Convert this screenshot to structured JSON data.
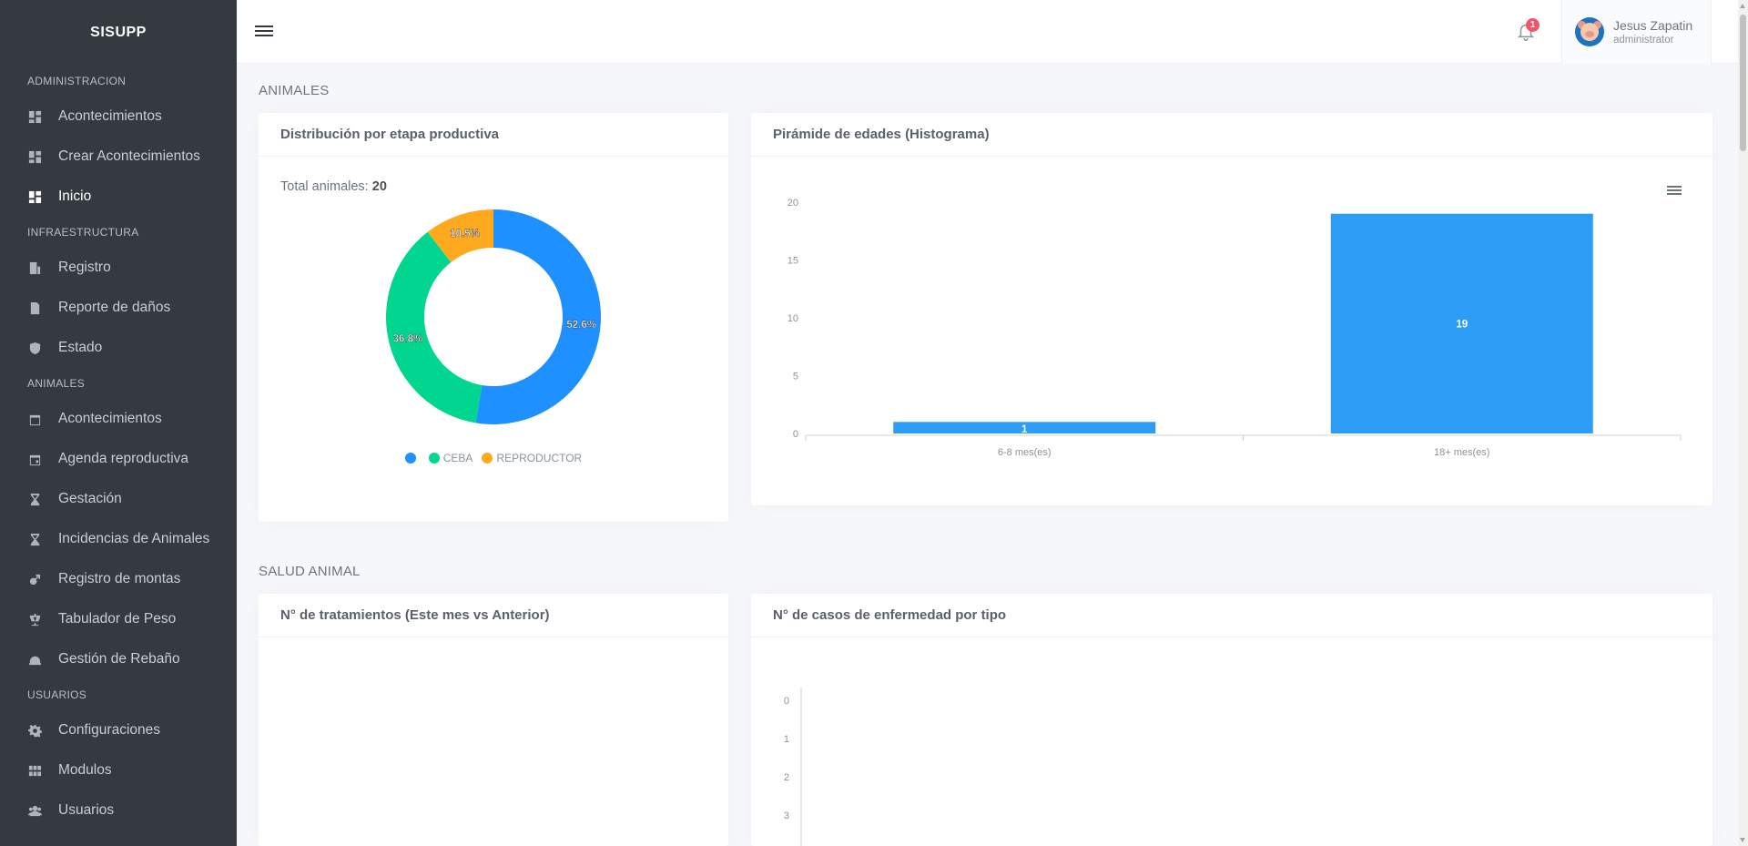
{
  "app": {
    "brand": "SISUPP"
  },
  "sidebar": {
    "sections": [
      {
        "title": "ADMINISTRACION",
        "items": [
          {
            "label": "Acontecimientos",
            "icon": "dashboard-icon"
          },
          {
            "label": "Crear Acontecimientos",
            "icon": "dashboard-icon"
          },
          {
            "label": "Inicio",
            "icon": "dashboard-icon",
            "active": true
          }
        ]
      },
      {
        "title": "INFRAESTRUCTURA",
        "items": [
          {
            "label": "Registro",
            "icon": "building-icon"
          },
          {
            "label": "Reporte de daños",
            "icon": "file-icon"
          },
          {
            "label": "Estado",
            "icon": "shield-check-icon"
          }
        ]
      },
      {
        "title": "ANIMALES",
        "items": [
          {
            "label": "Acontecimientos",
            "icon": "calendar-icon"
          },
          {
            "label": "Agenda reproductiva",
            "icon": "calendar-event-icon"
          },
          {
            "label": "Gestación",
            "icon": "hourglass-icon"
          },
          {
            "label": "Incidencias de Animales",
            "icon": "hourglass-icon"
          },
          {
            "label": "Registro de montas",
            "icon": "gender-icon"
          },
          {
            "label": "Tabulador de Peso",
            "icon": "scale-icon"
          },
          {
            "label": "Gestión de Rebaño",
            "icon": "helmet-icon"
          }
        ]
      },
      {
        "title": "USUARIOS",
        "items": [
          {
            "label": "Configuraciones",
            "icon": "gear-icon"
          },
          {
            "label": "Modulos",
            "icon": "grid-icon"
          },
          {
            "label": "Usuarios",
            "icon": "users-icon"
          }
        ]
      }
    ]
  },
  "topbar": {
    "notification_count": "1",
    "user": {
      "name": "Jesus Zapatin",
      "role": "administrator"
    }
  },
  "sections": {
    "animales": "ANIMALES",
    "salud": "SALUD ANIMAL"
  },
  "cards": {
    "distribucion": {
      "title": "Distribución por etapa productiva",
      "total_label": "Total animales:",
      "total_value": "20"
    },
    "piramide": {
      "title": "Pirámide de edades (Histograma)"
    },
    "tratamientos": {
      "title": "N° de tratamientos (Este mes vs Anterior)"
    },
    "enfermedad": {
      "title": "N° de casos de enfermedad por tipo"
    }
  },
  "chart_data": [
    {
      "type": "pie",
      "variant": "donut",
      "labels": [
        "",
        "CEBA",
        "REPRODUCTOR"
      ],
      "values": [
        52.6,
        36.8,
        10.5
      ],
      "data_labels": [
        "52.6%",
        "36.8%",
        "10.5%"
      ],
      "colors": [
        "#1e90ff",
        "#00d68f",
        "#ffa91e"
      ],
      "legend": "bottom"
    },
    {
      "type": "bar",
      "categories": [
        "6-8 mes(es)",
        "18+ mes(es)"
      ],
      "values": [
        1,
        19
      ],
      "ylim": [
        0,
        20
      ],
      "yticks": [
        0,
        5,
        10,
        15,
        20
      ],
      "color": "#2d9cf5",
      "grid": false
    },
    {
      "type": "bar",
      "categories": [],
      "values": [],
      "yticks": [
        0,
        1,
        2,
        3
      ],
      "grid": false
    }
  ]
}
